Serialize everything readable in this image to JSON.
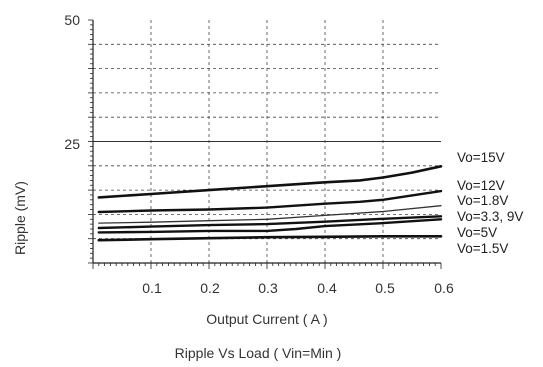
{
  "chart_data": {
    "type": "line",
    "title": "Ripple  Vs Load ( Vin=Min )",
    "xlabel": "Output Current ( A )",
    "ylabel": "Ripple (mV)",
    "xlim": [
      0,
      0.6
    ],
    "ylim": [
      0,
      50
    ],
    "x_ticks": [
      "0.1",
      "0.2",
      "0.3",
      "0.4",
      "0.5",
      "0.6"
    ],
    "y_ticks": [
      "25",
      "50"
    ],
    "grid": true,
    "series": [
      {
        "name": "Vo=15V",
        "x": [
          0.01,
          0.1,
          0.2,
          0.3,
          0.4,
          0.46,
          0.5,
          0.55,
          0.6
        ],
        "values": [
          13.5,
          14.2,
          15.0,
          15.8,
          16.6,
          17.0,
          17.6,
          18.6,
          19.9
        ],
        "width": 2.6,
        "color": "#111111"
      },
      {
        "name": "Vo=12V",
        "x": [
          0.01,
          0.1,
          0.2,
          0.3,
          0.4,
          0.46,
          0.5,
          0.55,
          0.6
        ],
        "values": [
          10.5,
          10.8,
          11.0,
          11.4,
          12.2,
          12.6,
          13.0,
          13.9,
          14.8
        ],
        "width": 2.4,
        "color": "#111111"
      },
      {
        "name": "Vo=1.8V",
        "x": [
          0.01,
          0.1,
          0.2,
          0.3,
          0.4,
          0.5,
          0.6
        ],
        "values": [
          8.2,
          8.4,
          8.7,
          9.0,
          9.8,
          10.6,
          11.8
        ],
        "width": 1.3,
        "color": "#333333"
      },
      {
        "name": "Vo=3.3, 9V",
        "x": [
          0.01,
          0.1,
          0.2,
          0.3,
          0.4,
          0.5,
          0.6
        ],
        "values": [
          7.2,
          7.5,
          7.8,
          8.0,
          8.5,
          9.1,
          9.6
        ],
        "width": 2.4,
        "color": "#111111"
      },
      {
        "name": "Vo=5V",
        "x": [
          0.01,
          0.1,
          0.2,
          0.3,
          0.35,
          0.4,
          0.5,
          0.6
        ],
        "values": [
          6.3,
          6.4,
          6.6,
          6.6,
          7.0,
          7.6,
          8.2,
          9.0
        ],
        "width": 2.4,
        "color": "#111111"
      },
      {
        "name": "Vo=1.5V",
        "x": [
          0.01,
          0.1,
          0.2,
          0.3,
          0.4,
          0.5,
          0.6
        ],
        "values": [
          4.7,
          4.9,
          5.1,
          5.3,
          5.4,
          5.5,
          5.5
        ],
        "width": 2.6,
        "color": "#111111"
      }
    ]
  }
}
